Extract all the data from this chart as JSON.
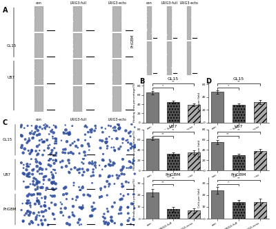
{
  "panel_labels": [
    "A",
    "B",
    "C",
    "D"
  ],
  "col_labels_A": [
    "con",
    "LRIG3-full",
    "LRIG3-ecto"
  ],
  "row_labels_A": [
    "GL15",
    "U87"
  ],
  "col_labels_Ar": [
    "con",
    "LRIG3-full",
    "LRIG3-ecto"
  ],
  "row_labels_C": [
    "GL15",
    "U87",
    "PriGBM"
  ],
  "bar_categories": [
    "con",
    "LRIG3-full",
    "LRIG3-ecto"
  ],
  "bar_colors": [
    "#7a7a7a",
    "#555555",
    "#aaaaaa"
  ],
  "B_GL15_means": [
    65,
    45,
    38
  ],
  "B_GL15_errors": [
    4,
    3,
    3
  ],
  "B_U87_means": [
    62,
    32,
    35
  ],
  "B_U87_errors": [
    3,
    3,
    4
  ],
  "B_PriGBM_means": [
    22,
    8,
    7
  ],
  "B_PriGBM_errors": [
    3,
    2,
    2
  ],
  "D_GL15_means": [
    48,
    28,
    32
  ],
  "D_GL15_errors": [
    3,
    2,
    3
  ],
  "D_U87_means": [
    55,
    30,
    38
  ],
  "D_U87_errors": [
    4,
    3,
    4
  ],
  "D_PriGBM_means": [
    24,
    14,
    14
  ],
  "D_PriGBM_errors": [
    3,
    2,
    3
  ],
  "B_ylabel": "Healing area percentage(%)",
  "D_ylabel": "Cells per field",
  "B_GL15_ylim": [
    0,
    90
  ],
  "B_U87_ylim": [
    0,
    80
  ],
  "B_PriGBM_ylim": [
    0,
    35
  ],
  "D_GL15_ylim": [
    0,
    65
  ],
  "D_U87_ylim": [
    0,
    80
  ],
  "D_PriGBM_ylim": [
    0,
    35
  ],
  "background_color": "#ffffff",
  "scratch_bg_color": "#c0c0c0",
  "invasion_bg_color": "#c8ccee"
}
